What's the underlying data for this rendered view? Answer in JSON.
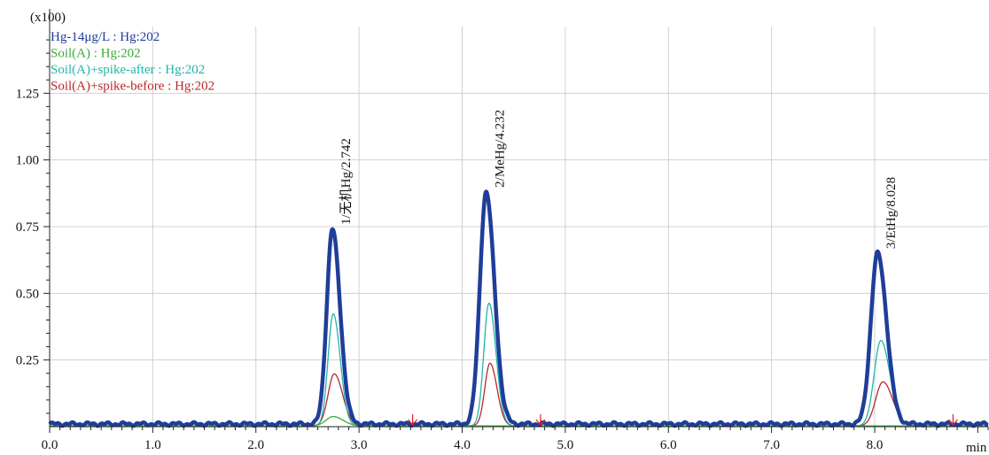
{
  "chart_data": {
    "type": "line",
    "title": "",
    "xlabel": "",
    "ylabel": "",
    "scale_label": "(x100)",
    "x_unit_label": "min",
    "xlim": [
      0.0,
      9.1
    ],
    "ylim": [
      0.0,
      1.5
    ],
    "grid": true,
    "legend_position": "top-left",
    "x_ticks": [
      "0.0",
      "1.0",
      "2.0",
      "3.0",
      "4.0",
      "5.0",
      "6.0",
      "7.0",
      "8.0"
    ],
    "y_ticks": [
      "0.25",
      "0.50",
      "0.75",
      "1.00",
      "1.25"
    ],
    "x_tick_values": [
      0,
      1,
      2,
      3,
      4,
      5,
      6,
      7,
      8
    ],
    "y_tick_values": [
      0.25,
      0.5,
      0.75,
      1.0,
      1.25
    ],
    "series": [
      {
        "name": "Hg-14μg/L : Hg:202",
        "color": "#1f3d99",
        "baseline": 0.01,
        "peaks": [
          {
            "rt": 2.742,
            "height": 0.73,
            "sigma": 0.055
          },
          {
            "rt": 4.232,
            "height": 0.87,
            "sigma": 0.06
          },
          {
            "rt": 8.028,
            "height": 0.64,
            "sigma": 0.065
          }
        ]
      },
      {
        "name": "Soil(A) : Hg:202",
        "color": "#3aaa35",
        "baseline": 0.003,
        "peaks": [
          {
            "rt": 2.75,
            "height": 0.035,
            "sigma": 0.07
          }
        ]
      },
      {
        "name": "Soil(A)+spike-after : Hg:202",
        "color": "#22b5a8",
        "baseline": 0.003,
        "peaks": [
          {
            "rt": 2.75,
            "height": 0.42,
            "sigma": 0.05
          },
          {
            "rt": 4.26,
            "height": 0.46,
            "sigma": 0.05
          },
          {
            "rt": 8.06,
            "height": 0.32,
            "sigma": 0.065
          }
        ]
      },
      {
        "name": "Soil(A)+spike-before : Hg:202",
        "color": "#b5282c",
        "baseline": 0.003,
        "peaks": [
          {
            "rt": 2.76,
            "height": 0.195,
            "sigma": 0.06
          },
          {
            "rt": 4.27,
            "height": 0.235,
            "sigma": 0.05
          },
          {
            "rt": 8.08,
            "height": 0.165,
            "sigma": 0.07
          }
        ]
      }
    ],
    "peak_labels": [
      {
        "text": "1/无机Hg/2.742",
        "x": 2.742,
        "y": 0.73
      },
      {
        "text": "2/MeHg/4.232",
        "x": 4.232,
        "y": 0.87
      },
      {
        "text": "3/EtHg/8.028",
        "x": 8.028,
        "y": 0.64
      }
    ],
    "integration_markers": [
      3.52,
      4.76,
      8.76
    ]
  }
}
